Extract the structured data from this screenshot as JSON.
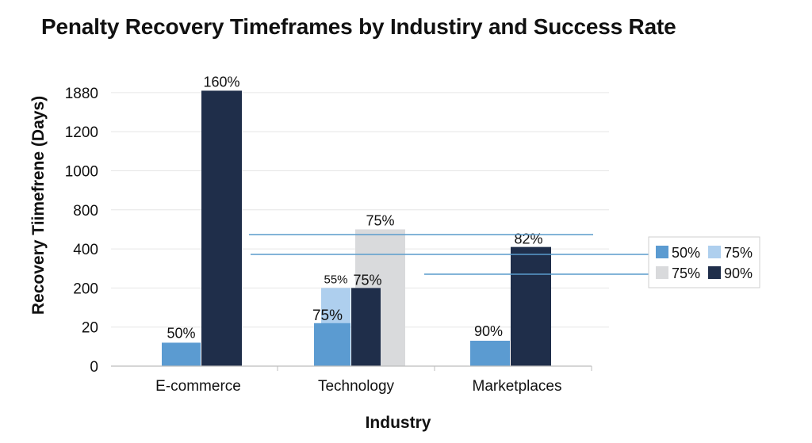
{
  "chart_data": {
    "type": "bar",
    "title": "Penalty Recovery Timeframes by Industiry and Success Rate",
    "xlabel": "Industry",
    "ylabel": "Recovery Tiimefrene (Days)",
    "y_tick_labels": [
      "0",
      "20",
      "200",
      "400",
      "800",
      "1000",
      "1200",
      "1880"
    ],
    "categories": [
      "E-commerce",
      "Technology",
      "Marketplaces"
    ],
    "bars": [
      {
        "category": "E-commerce",
        "series": "50%",
        "level": 0.6,
        "label": "50%"
      },
      {
        "category": "E-commerce",
        "series": "90%",
        "level": 7.05,
        "label": "160%"
      },
      {
        "category": "Technology",
        "series": "50%",
        "level": 1.1,
        "label": "75%"
      },
      {
        "category": "Technology",
        "series": "75% (light)",
        "level": 2.0,
        "label": "55%"
      },
      {
        "category": "Technology",
        "series": "75% (gray)",
        "level": 3.5,
        "label": "75%"
      },
      {
        "category": "Technology",
        "series": "90%",
        "level": 2.0,
        "label": "75%"
      },
      {
        "category": "Marketplaces",
        "series": "50%",
        "level": 0.65,
        "label": "90%"
      },
      {
        "category": "Marketplaces",
        "series": "90%",
        "level": 3.05,
        "label": "82%"
      }
    ],
    "legend": {
      "placement": "right",
      "entries": [
        {
          "label": "50%",
          "color": "#5b9bd1"
        },
        {
          "label": "75%",
          "color": "#aecfee"
        },
        {
          "label": "75%",
          "color": "#d9dadc"
        },
        {
          "label": "90%",
          "color": "#1f2e4a"
        }
      ]
    },
    "colors": {
      "s50": "#5b9bd1",
      "s75_light": "#aecfee",
      "s75_gray": "#d9dadc",
      "s90": "#1f2e4a",
      "reference_line": "#5a9ccc"
    },
    "grid": true
  }
}
